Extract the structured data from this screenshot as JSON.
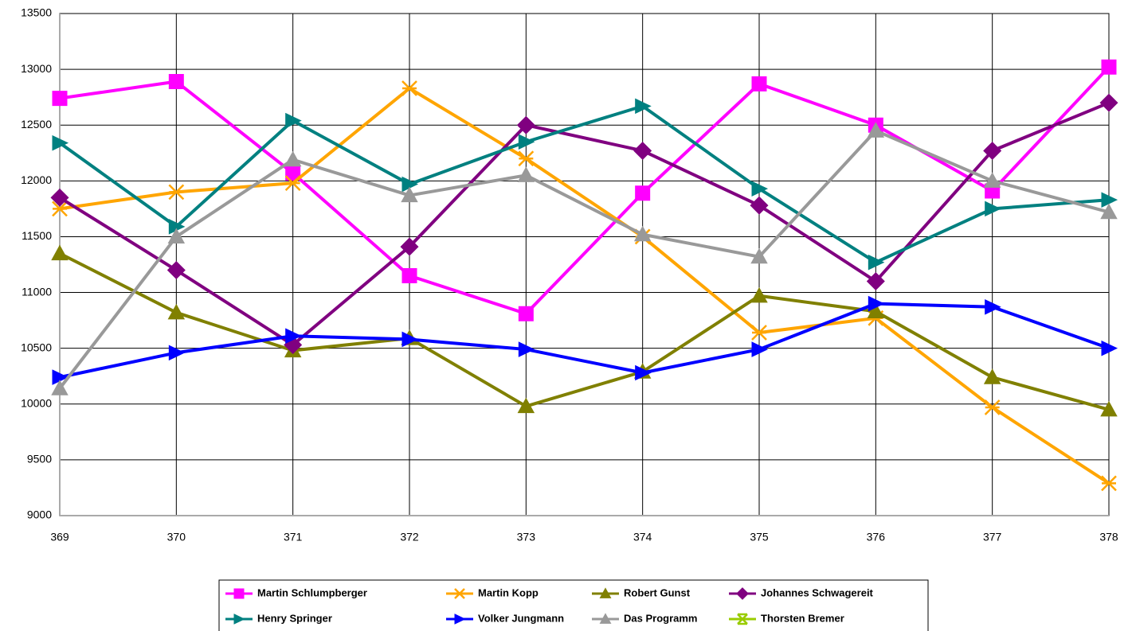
{
  "chart_data": {
    "type": "line",
    "x": [
      369,
      370,
      371,
      372,
      373,
      374,
      375,
      376,
      377,
      378
    ],
    "xlim": [
      369,
      378
    ],
    "xticks": [
      369,
      370,
      371,
      372,
      373,
      374,
      375,
      376,
      377,
      378
    ],
    "ylim": [
      9000,
      13500
    ],
    "yticks": [
      9000,
      9500,
      10000,
      10500,
      11000,
      11500,
      12000,
      12500,
      13000,
      13500
    ],
    "grid": true,
    "legend": "bottom",
    "series": [
      {
        "name": "Martin Schlumpberger",
        "color": "#ff00ff",
        "marker": "square",
        "values": [
          12740,
          12890,
          12070,
          11150,
          10810,
          11890,
          12870,
          12500,
          11910,
          13020
        ]
      },
      {
        "name": "Martin Kopp",
        "color": "#ffa500",
        "marker": "bowtie",
        "values": [
          11750,
          11900,
          11980,
          12830,
          12200,
          11500,
          10640,
          10770,
          9970,
          9290
        ]
      },
      {
        "name": "Robert Gunst",
        "color": "#808000",
        "marker": "triangle",
        "values": [
          11350,
          10820,
          10480,
          10590,
          9980,
          10290,
          10970,
          10830,
          10240,
          9950
        ]
      },
      {
        "name": "Johannes Schwagereit",
        "color": "#800080",
        "marker": "diamond",
        "values": [
          11850,
          11200,
          10530,
          11410,
          12500,
          12270,
          11780,
          11100,
          12270,
          12700
        ]
      },
      {
        "name": "Henry Springer",
        "color": "#008080",
        "marker": "arrow",
        "values": [
          12340,
          11590,
          12540,
          11970,
          12350,
          12670,
          11930,
          11270,
          11750,
          11830
        ]
      },
      {
        "name": "Volker Jungmann",
        "color": "#0000ff",
        "marker": "arrow",
        "values": [
          10240,
          10460,
          10610,
          10580,
          10490,
          10280,
          10490,
          10900,
          10870,
          10500
        ]
      },
      {
        "name": "Das Programm",
        "color": "#999999",
        "marker": "triangle",
        "values": [
          10140,
          11500,
          12190,
          11870,
          12050,
          11520,
          11320,
          12450,
          12000,
          11720
        ]
      },
      {
        "name": "Thorsten Bremer",
        "color": "#99cc00",
        "marker": "cross",
        "values": [
          null,
          null,
          null,
          null,
          null,
          null,
          null,
          null,
          null,
          null
        ]
      }
    ]
  }
}
